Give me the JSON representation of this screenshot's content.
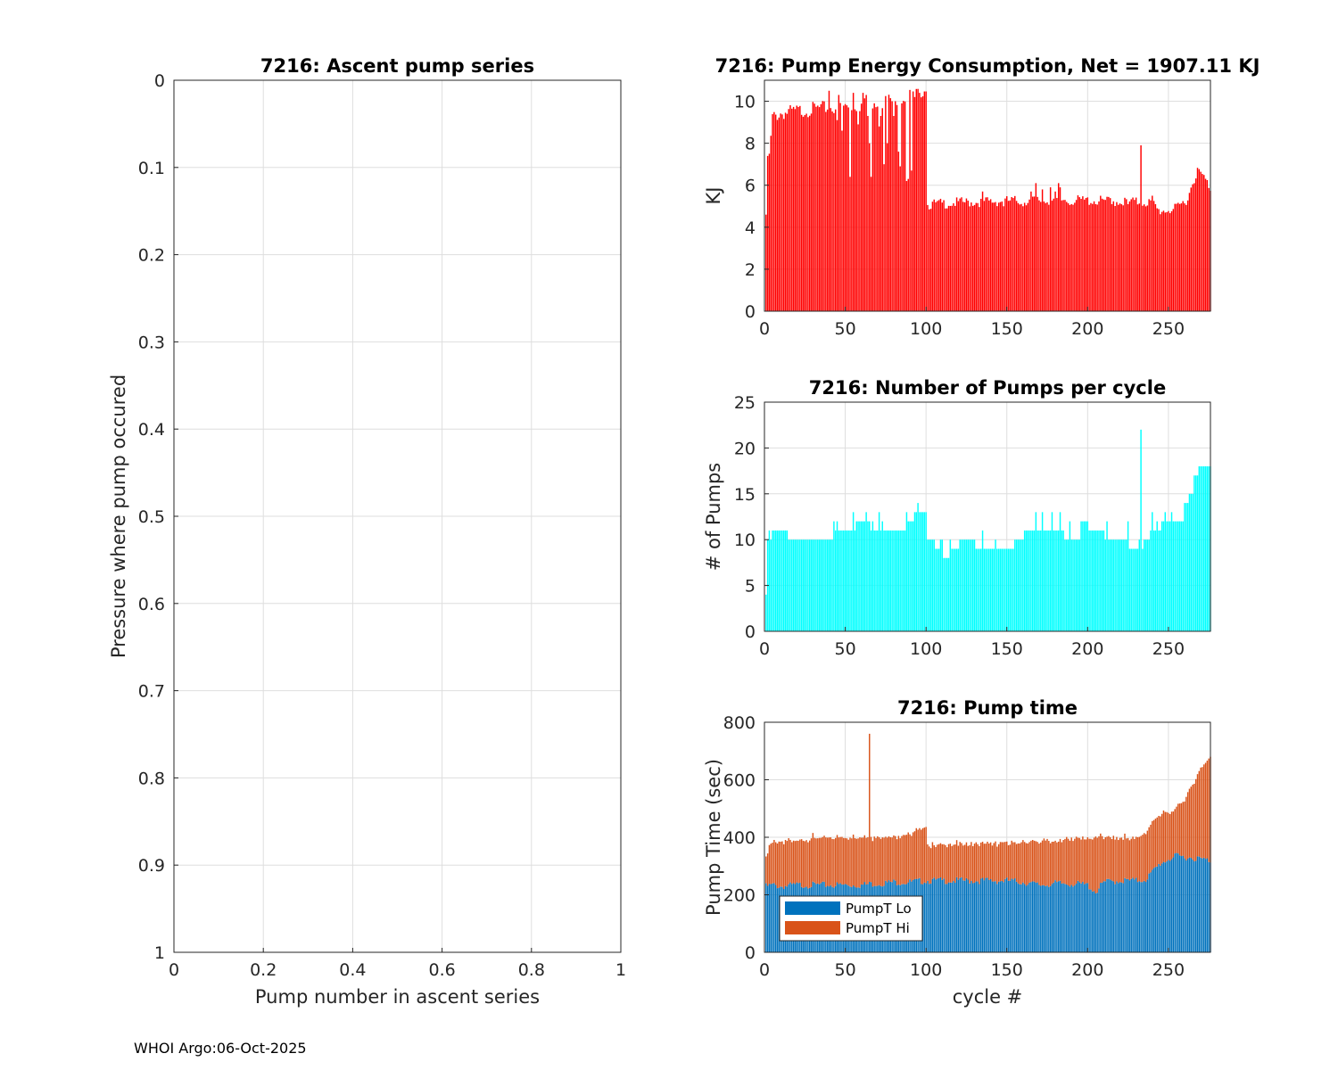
{
  "chart_data": [
    {
      "id": "ascent",
      "type": "line",
      "title": "7216: Ascent pump series",
      "xlabel": "Pump number in ascent series",
      "ylabel": "Pressure where pump occured",
      "xlim": [
        0,
        1
      ],
      "ylim": [
        0,
        1
      ],
      "y_reversed": true,
      "xticks": [
        0,
        0.2,
        0.4,
        0.6,
        0.8,
        1
      ],
      "xtick_labels": [
        "0",
        "0.2",
        "0.4",
        "0.6",
        "0.8",
        "1"
      ],
      "yticks": [
        0,
        0.1,
        0.2,
        0.3,
        0.4,
        0.5,
        0.6,
        0.7,
        0.8,
        0.9,
        1
      ],
      "ytick_labels": [
        "0",
        "0.1",
        "0.2",
        "0.3",
        "0.4",
        "0.5",
        "0.6",
        "0.7",
        "0.8",
        "0.9",
        "1"
      ],
      "grid": true,
      "series": []
    },
    {
      "id": "energy",
      "type": "bar",
      "title": "7216: Pump Energy Consumption,  Net = 1907.11 KJ",
      "xlabel": "",
      "ylabel": "KJ",
      "xlim": [
        0,
        276
      ],
      "ylim": [
        0,
        11
      ],
      "xticks": [
        0,
        50,
        100,
        150,
        200,
        250
      ],
      "xtick_labels": [
        "0",
        "50",
        "100",
        "150",
        "200",
        "250"
      ],
      "yticks": [
        0,
        2,
        4,
        6,
        8,
        10
      ],
      "ytick_labels": [
        "0",
        "2",
        "4",
        "6",
        "8",
        "10"
      ],
      "grid": true,
      "color": "#ff0000",
      "keyframes": [
        [
          1,
          7.7
        ],
        [
          3,
          7.4
        ],
        [
          5,
          9.4
        ],
        [
          10,
          9.6
        ],
        [
          30,
          9.8
        ],
        [
          60,
          10.0
        ],
        [
          95,
          10.5
        ],
        [
          100,
          10.9
        ],
        [
          101,
          5.2
        ],
        [
          120,
          5.3
        ],
        [
          160,
          5.4
        ],
        [
          200,
          5.4
        ],
        [
          240,
          5.3
        ],
        [
          244,
          4.9
        ],
        [
          255,
          5.0
        ],
        [
          262,
          5.5
        ],
        [
          265,
          6.3
        ],
        [
          268,
          6.8
        ],
        [
          271,
          6.6
        ],
        [
          276,
          6.0
        ]
      ],
      "overrides": [
        [
          1,
          4.6
        ],
        [
          3,
          7.5
        ],
        [
          40,
          10.5
        ],
        [
          45,
          9.1
        ],
        [
          46,
          10.3
        ],
        [
          48,
          8.6
        ],
        [
          53,
          6.4
        ],
        [
          55,
          10.4
        ],
        [
          58,
          8.9
        ],
        [
          61,
          10.4
        ],
        [
          63,
          10.3
        ],
        [
          64,
          9.3
        ],
        [
          65,
          8.0
        ],
        [
          66,
          6.4
        ],
        [
          68,
          9.9
        ],
        [
          71,
          8.8
        ],
        [
          72,
          9.3
        ],
        [
          74,
          7.0
        ],
        [
          76,
          8.0
        ],
        [
          79,
          10.0
        ],
        [
          80,
          9.3
        ],
        [
          81,
          10.0
        ],
        [
          83,
          7.6
        ],
        [
          84,
          6.9
        ],
        [
          85,
          9.9
        ],
        [
          88,
          6.2
        ],
        [
          89,
          6.3
        ],
        [
          91,
          6.7
        ],
        [
          93,
          10.2
        ],
        [
          96,
          10.4
        ],
        [
          135,
          5.7
        ],
        [
          148,
          5.0
        ],
        [
          160,
          5.0
        ],
        [
          165,
          5.7
        ],
        [
          168,
          6.1
        ],
        [
          172,
          5.8
        ],
        [
          177,
          5.9
        ],
        [
          180,
          5.7
        ],
        [
          182,
          6.1
        ],
        [
          183,
          5.9
        ],
        [
          186,
          5.3
        ],
        [
          190,
          5.1
        ],
        [
          205,
          5.1
        ],
        [
          215,
          5.1
        ],
        [
          225,
          5.1
        ],
        [
          233,
          7.9
        ],
        [
          240,
          5.5
        ]
      ]
    },
    {
      "id": "pumps",
      "type": "bar",
      "title": "7216: Number of Pumps per cycle",
      "xlabel": "",
      "ylabel": "# of Pumps",
      "xlim": [
        0,
        276
      ],
      "ylim": [
        0,
        25
      ],
      "xticks": [
        0,
        50,
        100,
        150,
        200,
        250
      ],
      "xtick_labels": [
        "0",
        "50",
        "100",
        "150",
        "200",
        "250"
      ],
      "yticks": [
        0,
        5,
        10,
        15,
        20,
        25
      ],
      "ytick_labels": [
        "0",
        "5",
        "10",
        "15",
        "20",
        "25"
      ],
      "grid": true,
      "color": "#00ffff",
      "segments": [
        [
          1,
          4,
          10
        ],
        [
          5,
          15,
          11
        ],
        [
          16,
          42,
          10
        ],
        [
          43,
          56,
          11
        ],
        [
          57,
          65,
          12
        ],
        [
          66,
          70,
          11
        ],
        [
          71,
          88,
          11
        ],
        [
          89,
          92,
          12
        ],
        [
          93,
          100,
          13
        ],
        [
          101,
          105,
          10
        ],
        [
          106,
          108,
          9
        ],
        [
          109,
          110,
          10
        ],
        [
          111,
          115,
          8
        ],
        [
          116,
          120,
          9
        ],
        [
          121,
          130,
          10
        ],
        [
          131,
          140,
          9
        ],
        [
          141,
          155,
          9
        ],
        [
          156,
          160,
          10
        ],
        [
          161,
          175,
          11
        ],
        [
          176,
          185,
          11
        ],
        [
          186,
          195,
          10
        ],
        [
          196,
          200,
          12
        ],
        [
          201,
          210,
          11
        ],
        [
          211,
          225,
          10
        ],
        [
          226,
          231,
          9
        ],
        [
          232,
          238,
          10
        ],
        [
          239,
          245,
          11
        ],
        [
          246,
          255,
          12
        ],
        [
          256,
          259,
          12
        ],
        [
          260,
          262,
          14
        ],
        [
          263,
          265,
          15
        ],
        [
          266,
          268,
          17
        ],
        [
          269,
          276,
          18
        ]
      ],
      "overrides": [
        [
          1,
          4
        ],
        [
          3,
          11
        ],
        [
          8,
          11
        ],
        [
          15,
          10
        ],
        [
          43,
          12
        ],
        [
          45,
          12
        ],
        [
          55,
          13
        ],
        [
          63,
          13
        ],
        [
          67,
          12
        ],
        [
          71,
          13
        ],
        [
          73,
          12
        ],
        [
          88,
          13
        ],
        [
          95,
          14
        ],
        [
          102,
          10
        ],
        [
          115,
          10
        ],
        [
          135,
          11
        ],
        [
          143,
          10
        ],
        [
          155,
          10
        ],
        [
          168,
          13
        ],
        [
          172,
          13
        ],
        [
          178,
          13
        ],
        [
          183,
          13
        ],
        [
          189,
          12
        ],
        [
          200,
          12
        ],
        [
          212,
          12
        ],
        [
          225,
          12
        ],
        [
          233,
          22
        ],
        [
          234,
          9
        ],
        [
          240,
          13
        ],
        [
          243,
          12
        ],
        [
          248,
          13
        ],
        [
          252,
          13
        ]
      ]
    },
    {
      "id": "pumptime",
      "type": "bar",
      "stacked": true,
      "title": "7216: Pump time",
      "xlabel": "cycle #",
      "ylabel": "Pump Time (sec)",
      "xlim": [
        0,
        276
      ],
      "ylim": [
        0,
        800
      ],
      "xticks": [
        0,
        50,
        100,
        150,
        200,
        250
      ],
      "xtick_labels": [
        "0",
        "50",
        "100",
        "150",
        "200",
        "250"
      ],
      "yticks": [
        0,
        200,
        400,
        600,
        800
      ],
      "ytick_labels": [
        "0",
        "200",
        "400",
        "600",
        "800"
      ],
      "grid": true,
      "legend": "bottom-left",
      "series": [
        {
          "name": "PumpT Lo",
          "color": "#0072bd",
          "keyframes": [
            [
              1,
              235
            ],
            [
              5,
              240
            ],
            [
              10,
              235
            ],
            [
              20,
              240
            ],
            [
              30,
              240
            ],
            [
              40,
              240
            ],
            [
              50,
              240
            ],
            [
              60,
              240
            ],
            [
              70,
              245
            ],
            [
              80,
              250
            ],
            [
              90,
              250
            ],
            [
              100,
              255
            ],
            [
              110,
              255
            ],
            [
              150,
              255
            ],
            [
              160,
              250
            ],
            [
              170,
              240
            ],
            [
              180,
              245
            ],
            [
              190,
              245
            ],
            [
              200,
              240
            ],
            [
              205,
              215
            ],
            [
              210,
              250
            ],
            [
              220,
              255
            ],
            [
              230,
              255
            ],
            [
              236,
              260
            ],
            [
              240,
              285
            ],
            [
              245,
              315
            ],
            [
              250,
              330
            ],
            [
              255,
              340
            ],
            [
              265,
              335
            ],
            [
              276,
              325
            ]
          ]
        },
        {
          "name": "PumpT Hi",
          "color": "#d95319",
          "keyframes": [
            [
              1,
              105
            ],
            [
              3,
              140
            ],
            [
              5,
              155
            ],
            [
              20,
              160
            ],
            [
              40,
              170
            ],
            [
              60,
              175
            ],
            [
              80,
              165
            ],
            [
              90,
              170
            ],
            [
              95,
              185
            ],
            [
              100,
              195
            ],
            [
              101,
              125
            ],
            [
              110,
              130
            ],
            [
              150,
              135
            ],
            [
              165,
              150
            ],
            [
              175,
              160
            ],
            [
              180,
              145
            ],
            [
              185,
              160
            ],
            [
              200,
              165
            ],
            [
              205,
              195
            ],
            [
              210,
              160
            ],
            [
              225,
              150
            ],
            [
              232,
              155
            ],
            [
              236,
              170
            ],
            [
              240,
              175
            ],
            [
              245,
              180
            ],
            [
              250,
              165
            ],
            [
              255,
              170
            ],
            [
              260,
              210
            ],
            [
              265,
              260
            ],
            [
              270,
              320
            ],
            [
              276,
              370
            ]
          ]
        }
      ],
      "overrides": [
        [
          65,
          245,
          515
        ]
      ]
    }
  ],
  "footer": "WHOI Argo:06-Oct-2025"
}
